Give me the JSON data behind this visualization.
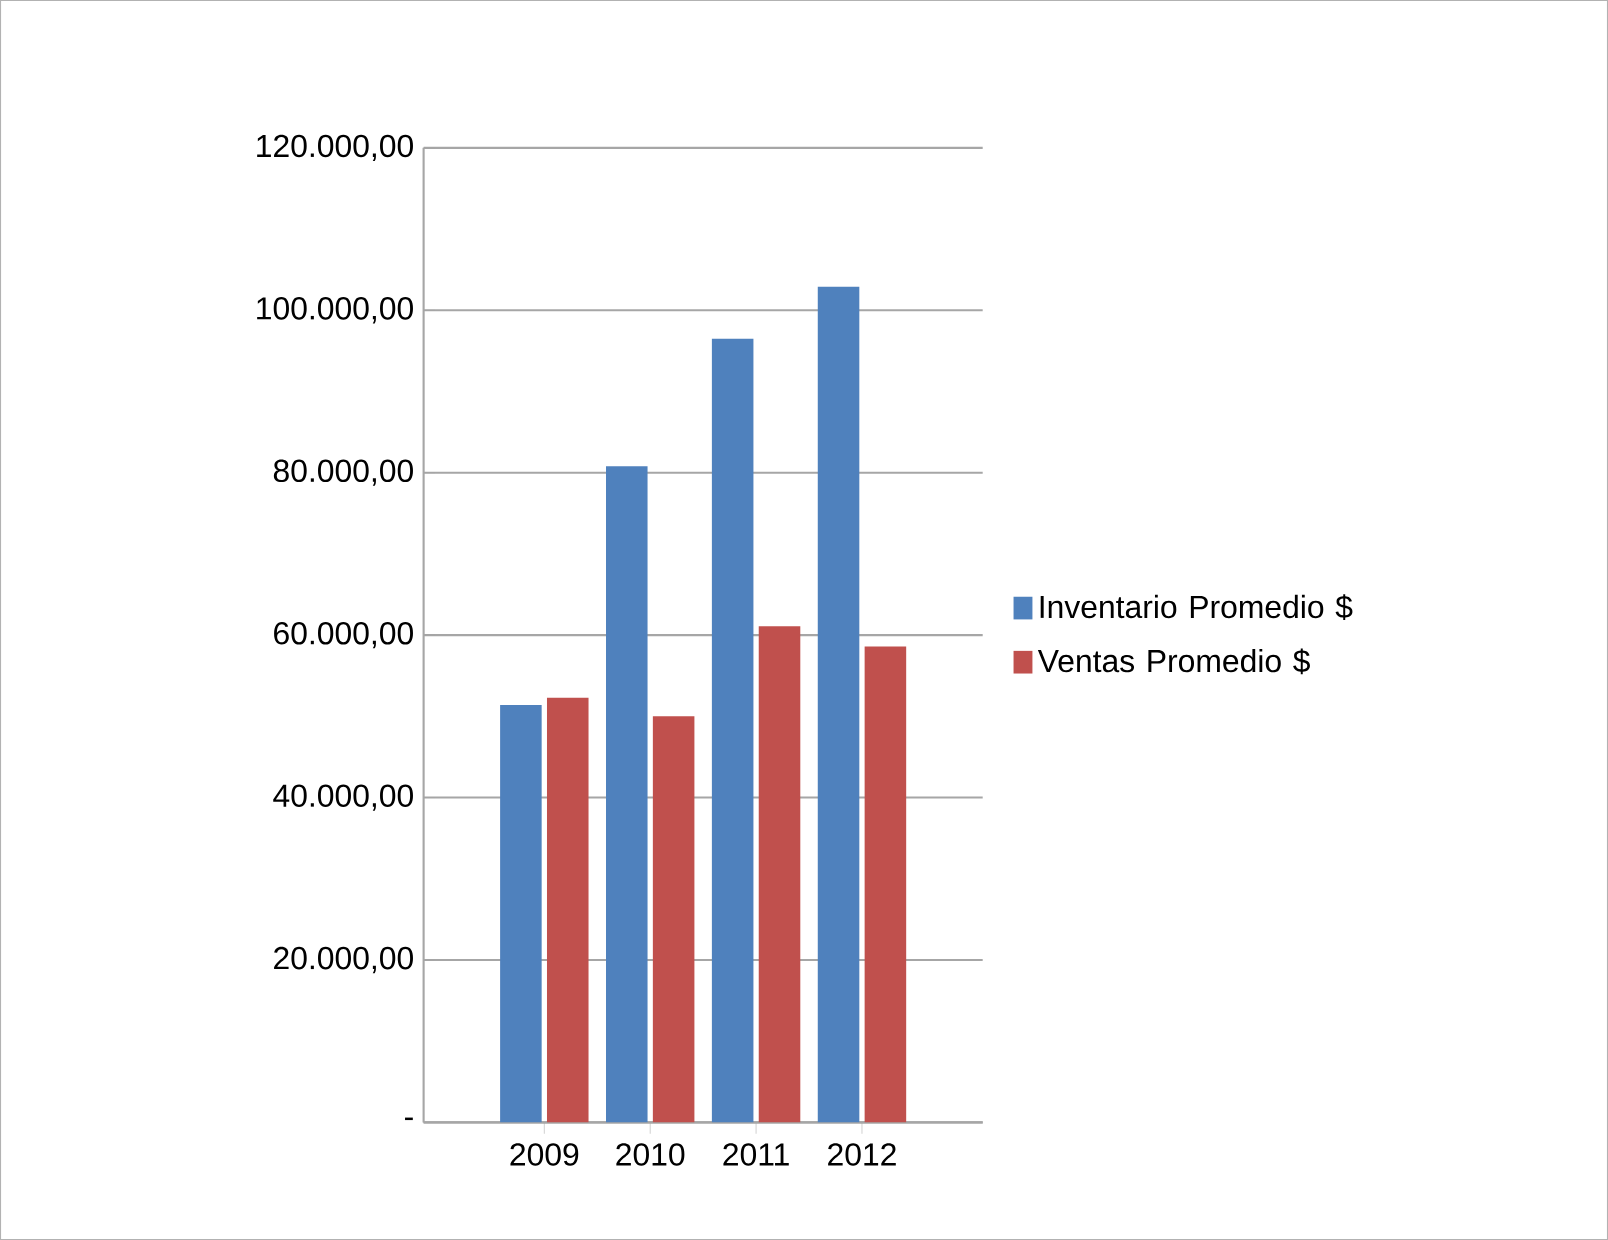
{
  "chart_data": {
    "type": "bar",
    "categories": [
      "2009",
      "2010",
      "2011",
      "2012"
    ],
    "series": [
      {
        "name": "Inventario Promedio $",
        "color": "#4f81bd",
        "values": [
          51400,
          80800,
          96500,
          102900
        ]
      },
      {
        "name": "Ventas Promedio $",
        "color": "#c0504d",
        "values": [
          52300,
          50000,
          61100,
          58600
        ]
      }
    ],
    "ylim": [
      0,
      120000
    ],
    "yticks": [
      {
        "value": 0,
        "label": "-"
      },
      {
        "value": 20000,
        "label": "20.000,00"
      },
      {
        "value": 40000,
        "label": "40.000,00"
      },
      {
        "value": 60000,
        "label": "60.000,00"
      },
      {
        "value": 80000,
        "label": "80.000,00"
      },
      {
        "value": 100000,
        "label": "100.000,00"
      },
      {
        "value": 120000,
        "label": "120.000,00"
      }
    ],
    "grid": "y",
    "legend": "right"
  }
}
